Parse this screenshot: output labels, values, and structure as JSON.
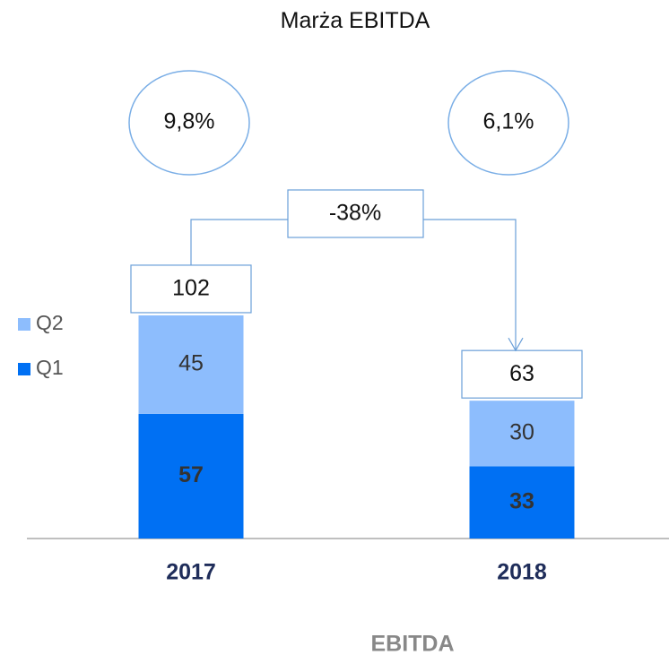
{
  "chart_data": {
    "type": "bar",
    "stacked": true,
    "title": "Marża EBITDA",
    "categories": [
      "2017",
      "2018"
    ],
    "series": [
      {
        "name": "Q1",
        "color": "#0070f3",
        "values": [
          57,
          33
        ]
      },
      {
        "name": "Q2",
        "color": "#8dbdfd",
        "values": [
          45,
          30
        ]
      }
    ],
    "totals": [
      102,
      63
    ],
    "margins": [
      {
        "value": 9.8,
        "label": "9,8%"
      },
      {
        "value": 6.1,
        "label": "6,1%"
      }
    ],
    "change": {
      "value": -38,
      "label": "-38%"
    },
    "x_label": "EBITDA",
    "ylim": [
      0,
      120
    ]
  }
}
